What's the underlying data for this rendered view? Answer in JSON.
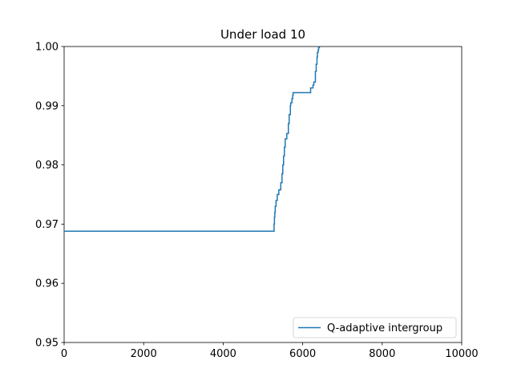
{
  "chart_data": {
    "type": "line",
    "title": "Under load 10",
    "xlabel": "",
    "ylabel": "",
    "xlim": [
      0,
      10000
    ],
    "ylim": [
      0.95,
      1.0
    ],
    "xticks": [
      0,
      2000,
      4000,
      6000,
      8000,
      10000
    ],
    "xtick_labels": [
      "0",
      "2000",
      "4000",
      "6000",
      "8000",
      "10000"
    ],
    "yticks": [
      0.95,
      0.96,
      0.97,
      0.98,
      0.99,
      1.0
    ],
    "ytick_labels": [
      "0.95",
      "0.96",
      "0.97",
      "0.98",
      "0.99",
      "1.00"
    ],
    "grid": false,
    "legend": {
      "position": "bottom-right"
    },
    "series": [
      {
        "name": "Q-adaptive intergroup",
        "color": "#1f77b4",
        "x": [
          0,
          5270,
          5280,
          5290,
          5300,
          5310,
          5330,
          5360,
          5400,
          5450,
          5480,
          5500,
          5520,
          5540,
          5560,
          5600,
          5640,
          5660,
          5690,
          5700,
          5730,
          5750,
          5760,
          5780,
          5800,
          6150,
          6200,
          6260,
          6280,
          6320,
          6340,
          6360,
          6370,
          6390,
          6400,
          6420
        ],
        "y": [
          0.9688,
          0.9688,
          0.97,
          0.9712,
          0.972,
          0.973,
          0.974,
          0.975,
          0.9758,
          0.977,
          0.9785,
          0.98,
          0.9815,
          0.983,
          0.9844,
          0.9853,
          0.987,
          0.9885,
          0.99,
          0.9905,
          0.9912,
          0.9918,
          0.9922,
          0.9922,
          0.9922,
          0.9922,
          0.993,
          0.9935,
          0.994,
          0.9958,
          0.997,
          0.9982,
          0.999,
          0.9994,
          0.9998,
          1.0
        ]
      }
    ]
  }
}
